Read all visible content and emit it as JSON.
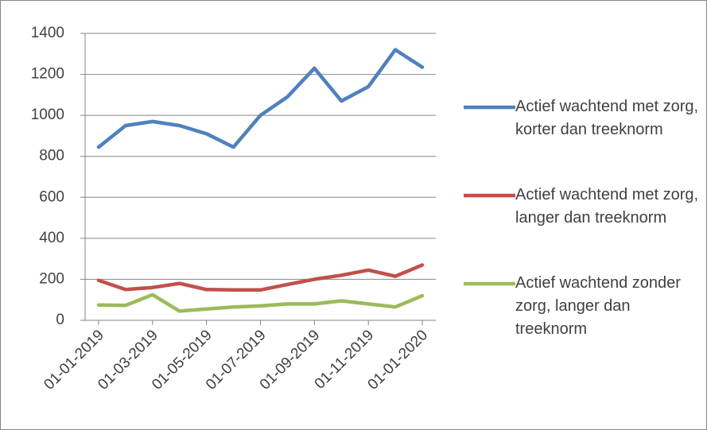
{
  "chart_data": {
    "type": "line",
    "categories": [
      "01-01-2019",
      null,
      "01-03-2019",
      null,
      "01-05-2019",
      null,
      "01-07-2019",
      null,
      "01-09-2019",
      null,
      "01-11-2019",
      null,
      "01-01-2020"
    ],
    "series": [
      {
        "name": "Actief wachtend met zorg, korter dan treeknorm",
        "color": "#4f81bd",
        "values": [
          845,
          950,
          970,
          950,
          910,
          845,
          1000,
          1090,
          1230,
          1070,
          1140,
          1320,
          1235
        ]
      },
      {
        "name": "Actief wachtend met zorg, langer dan treeknorm",
        "color": "#c0504d",
        "values": [
          195,
          150,
          160,
          180,
          150,
          148,
          148,
          175,
          200,
          220,
          245,
          215,
          270
        ]
      },
      {
        "name": "Actief wachtend zonder zorg, langer dan treeknorm",
        "color": "#9bbb59",
        "values": [
          75,
          73,
          125,
          45,
          55,
          65,
          70,
          80,
          80,
          95,
          80,
          65,
          120
        ]
      }
    ],
    "ylim": [
      0,
      1400
    ],
    "yticks": [
      0,
      200,
      400,
      600,
      800,
      1000,
      1200,
      1400
    ],
    "grid": true,
    "legend": "right"
  }
}
